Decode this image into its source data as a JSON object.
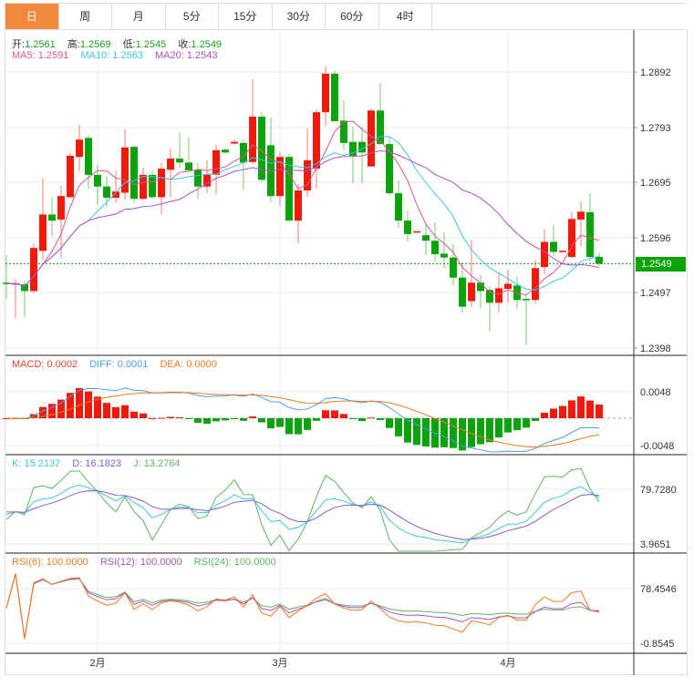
{
  "tabs": [
    "日",
    "周",
    "月",
    "5分",
    "15分",
    "30分",
    "60分",
    "4时"
  ],
  "active_tab": 0,
  "ohlc_legend": {
    "open_label": "开:",
    "open": "1.2561",
    "high_label": "高:",
    "high": "1.2569",
    "low_label": "低:",
    "low": "1.2545",
    "close_label": "收:",
    "close": "1.2549"
  },
  "ma_legend": {
    "ma5": "MA5: 1.2591",
    "ma10": "MA10: 1.2563",
    "ma20": "MA20: 1.2543"
  },
  "macd_legend": {
    "macd": "MACD: 0.0002",
    "diff": "DIFF: 0.0001",
    "dea": "DEA: 0.0000"
  },
  "kdj_legend": {
    "k": "K: 15.2137",
    "d": "D: 16.1823",
    "j": "J: 13.2764"
  },
  "rsi_legend": {
    "rsi6": "RSI(6): 100.0000",
    "rsi12": "RSI(12): 100.0000",
    "rsi24": "RSI(24): 100.0000"
  },
  "current_price": "1.2549",
  "price_ticks": [
    "1.2892",
    "1.2793",
    "1.2695",
    "1.2596",
    "1.2497",
    "1.2398"
  ],
  "macd_ticks": [
    "0.0048",
    "-0.0048"
  ],
  "kdj_ticks": [
    "79.7280",
    "3.9651"
  ],
  "rsi_ticks": [
    "78.4546",
    "-0.8545"
  ],
  "month_labels": [
    {
      "label": "2月",
      "index": 10
    },
    {
      "label": "3月",
      "index": 30
    },
    {
      "label": "4月",
      "index": 55
    }
  ],
  "colors": {
    "up": "#f01a0a",
    "down": "#0aa30a",
    "ma5": "#e8538f",
    "ma10": "#3cc8e0",
    "ma20": "#b04fc8",
    "diff": "#4aa0e8",
    "dea": "#f07a1e",
    "k": "#3cc8e0",
    "d": "#8a5ad8",
    "j": "#5cb85c",
    "rsi6": "#f07a1e",
    "rsi12": "#b04fc8",
    "rsi24": "#5cb85c",
    "tab_active": "#f0883e"
  },
  "chart_data": {
    "type": "candlestick",
    "price_range": [
      1.2398,
      1.2892
    ],
    "candles": [
      [
        1.2515,
        1.2564,
        1.2486,
        1.2513
      ],
      [
        1.2513,
        1.2521,
        1.2451,
        1.2514
      ],
      [
        1.2512,
        1.2518,
        1.2453,
        1.25
      ],
      [
        1.25,
        1.2585,
        1.2497,
        1.2577
      ],
      [
        1.2572,
        1.2702,
        1.2556,
        1.2637
      ],
      [
        1.2637,
        1.2668,
        1.2598,
        1.2626
      ],
      [
        1.2628,
        1.2688,
        1.2559,
        1.267
      ],
      [
        1.2668,
        1.2748,
        1.2667,
        1.2742
      ],
      [
        1.274,
        1.2797,
        1.2714,
        1.2771
      ],
      [
        1.2774,
        1.2778,
        1.2683,
        1.2708
      ],
      [
        1.2708,
        1.2726,
        1.2655,
        1.2687
      ],
      [
        1.2687,
        1.2706,
        1.265,
        1.2667
      ],
      [
        1.2667,
        1.2716,
        1.2658,
        1.2678
      ],
      [
        1.2676,
        1.2789,
        1.2664,
        1.2757
      ],
      [
        1.2758,
        1.276,
        1.2658,
        1.2665
      ],
      [
        1.2665,
        1.2721,
        1.2664,
        1.2708
      ],
      [
        1.2708,
        1.2716,
        1.2666,
        1.2668
      ],
      [
        1.2668,
        1.2729,
        1.2636,
        1.2719
      ],
      [
        1.2717,
        1.2755,
        1.2668,
        1.2737
      ],
      [
        1.2737,
        1.2784,
        1.272,
        1.273
      ],
      [
        1.273,
        1.2775,
        1.2719,
        1.2716
      ],
      [
        1.2717,
        1.2729,
        1.2665,
        1.2687
      ],
      [
        1.2687,
        1.2734,
        1.2675,
        1.2708
      ],
      [
        1.2708,
        1.2761,
        1.2673,
        1.2752
      ],
      [
        1.2753,
        1.2755,
        1.2746,
        1.2748
      ],
      [
        1.2764,
        1.2771,
        1.2762,
        1.2767
      ],
      [
        1.2765,
        1.2771,
        1.2681,
        1.273
      ],
      [
        1.2731,
        1.2879,
        1.2727,
        1.2812
      ],
      [
        1.2812,
        1.282,
        1.2695,
        1.2699
      ],
      [
        1.2761,
        1.281,
        1.2659,
        1.267
      ],
      [
        1.267,
        1.2748,
        1.2652,
        1.274
      ],
      [
        1.274,
        1.2745,
        1.2626,
        1.2626
      ],
      [
        1.2626,
        1.2691,
        1.2585,
        1.268
      ],
      [
        1.268,
        1.2791,
        1.2668,
        1.2734
      ],
      [
        1.2719,
        1.2825,
        1.2683,
        1.282
      ],
      [
        1.282,
        1.2902,
        1.2796,
        1.2889
      ],
      [
        1.2889,
        1.2894,
        1.2804,
        1.2804
      ],
      [
        1.2805,
        1.2841,
        1.2752,
        1.2765
      ],
      [
        1.2767,
        1.2794,
        1.2693,
        1.2742
      ],
      [
        1.2767,
        1.2794,
        1.2693,
        1.2748
      ],
      [
        1.2723,
        1.2827,
        1.2723,
        1.2823
      ],
      [
        1.2823,
        1.2872,
        1.2763,
        1.2763
      ],
      [
        1.2763,
        1.2776,
        1.2673,
        1.2675
      ],
      [
        1.2675,
        1.2698,
        1.2613,
        1.2626
      ],
      [
        1.2626,
        1.2644,
        1.2588,
        1.2602
      ],
      [
        1.2606,
        1.2607,
        1.2605,
        1.2607
      ],
      [
        1.26,
        1.2618,
        1.2564,
        1.259
      ],
      [
        1.259,
        1.2623,
        1.2553,
        1.2566
      ],
      [
        1.2567,
        1.2605,
        1.2541,
        1.256
      ],
      [
        1.256,
        1.2584,
        1.251,
        1.2524
      ],
      [
        1.2524,
        1.2551,
        1.2462,
        1.2472
      ],
      [
        1.2482,
        1.2592,
        1.2472,
        1.2515
      ],
      [
        1.2515,
        1.2528,
        1.2469,
        1.25
      ],
      [
        1.2502,
        1.2507,
        1.2428,
        1.2479
      ],
      [
        1.2479,
        1.2531,
        1.2462,
        1.2505
      ],
      [
        1.2504,
        1.2538,
        1.2479,
        1.2513
      ],
      [
        1.251,
        1.2526,
        1.2467,
        1.2484
      ],
      [
        1.2486,
        1.2494,
        1.2402,
        1.2484
      ],
      [
        1.2484,
        1.2556,
        1.2477,
        1.2541
      ],
      [
        1.2543,
        1.2611,
        1.253,
        1.2588
      ],
      [
        1.2588,
        1.2618,
        1.2562,
        1.257
      ],
      [
        1.2572,
        1.2573,
        1.2571,
        1.2572
      ],
      [
        1.2561,
        1.2641,
        1.2559,
        1.2629
      ],
      [
        1.2628,
        1.266,
        1.258,
        1.2642
      ],
      [
        1.2641,
        1.2675,
        1.2553,
        1.2561
      ],
      [
        1.2561,
        1.2569,
        1.2545,
        1.2549
      ]
    ],
    "macd_range": [
      -0.0048,
      0.0048
    ],
    "kdj_range": [
      3.9651,
      79.728
    ],
    "rsi_range": [
      -0.8545,
      78.4546
    ]
  }
}
